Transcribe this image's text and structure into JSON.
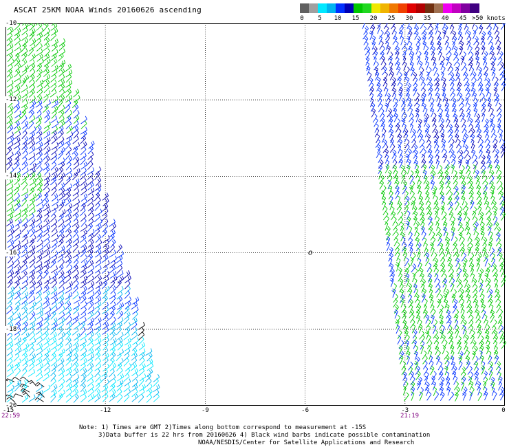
{
  "title": "ASCAT 25KM NOAA Winds 20160626 ascending",
  "legend": {
    "colors": [
      "#606060",
      "#a0a0a0",
      "#00e8ff",
      "#00b4f0",
      "#0030ff",
      "#0000b4",
      "#00c800",
      "#20d820",
      "#f0e800",
      "#f0b400",
      "#f07800",
      "#f04000",
      "#e00000",
      "#b00000",
      "#703010",
      "#a07050",
      "#f000f0",
      "#c000c0",
      "#8000a0",
      "#400080"
    ],
    "labels": [
      "0",
      "5",
      "10",
      "15",
      "20",
      "25",
      "30",
      "35",
      "40",
      "45",
      ">50 knots"
    ]
  },
  "axes": {
    "lat_ticks": [
      "-10",
      "-12",
      "-14",
      "-16",
      "-18",
      "-20"
    ],
    "lon_ticks": [
      "-15",
      "-12",
      "-9",
      "-6",
      "-3",
      "0"
    ],
    "lon_range": [
      -15,
      0
    ],
    "lat_range": [
      -10,
      -20
    ],
    "grid": "dotted"
  },
  "times": {
    "left": "22:59",
    "right": "21:19"
  },
  "center_marker": "o",
  "notes": {
    "line1": "Note: 1) Times are GMT 2)Times along bottom correspond to measurement at -15S",
    "line2": "3)Data buffer is 22 hrs from 20160626 4) Black wind barbs indicate possible contamination",
    "line3": "NOAA/NESDIS/Center for Satellite Applications and Research"
  },
  "swaths": [
    {
      "name": "west-pass",
      "lon_edges_top": [
        -15,
        -13.6
      ],
      "lon_edges_bottom": [
        -15,
        -10.3
      ],
      "lat_range": [
        -10,
        -20
      ]
    },
    {
      "name": "east-pass",
      "lon_edges_top": [
        -4.3,
        0
      ],
      "lon_edges_bottom": [
        -3.0,
        0
      ],
      "lat_range": [
        -10,
        -20
      ]
    }
  ]
}
